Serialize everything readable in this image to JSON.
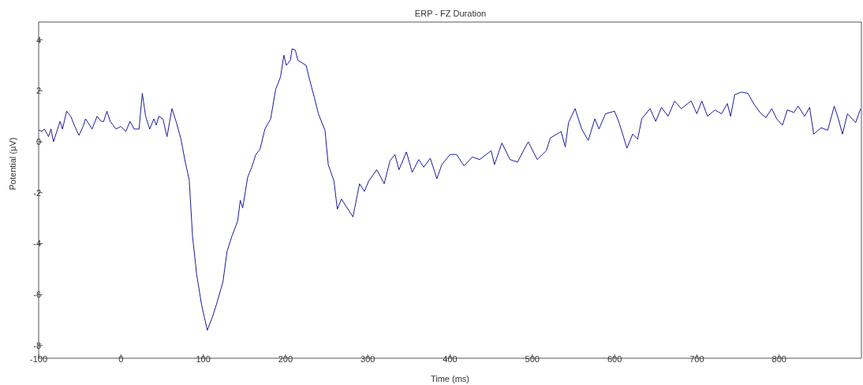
{
  "chart_data": {
    "type": "line",
    "title": "ERP - FZ Duration",
    "xlabel": "Time (ms)",
    "ylabel": "Potential (μV)",
    "color": "#1a1a9c",
    "marker": "none",
    "line_style": "solid",
    "xlim": [
      -100,
      900
    ],
    "ylim": [
      -8.5,
      4.7
    ],
    "xticks": [
      -100,
      0,
      100,
      200,
      300,
      400,
      500,
      600,
      700,
      800
    ],
    "yticks": [
      -8,
      -6,
      -4,
      -2,
      0,
      2,
      4
    ],
    "x": [
      -100,
      -96,
      -93,
      -88,
      -85,
      -82,
      -79,
      -74,
      -71,
      -66,
      -61,
      -56,
      -51,
      -46,
      -43,
      -38,
      -35,
      -29,
      -24,
      -21,
      -17,
      -13,
      -6,
      0,
      6,
      11,
      16,
      22,
      26,
      30,
      35,
      40,
      43,
      46,
      51,
      56,
      62,
      67,
      73,
      78,
      83,
      87,
      92,
      98,
      105,
      111,
      116,
      124,
      129,
      135,
      142,
      145,
      148,
      154,
      159,
      164,
      169,
      175,
      182,
      188,
      194,
      198,
      201,
      206,
      208,
      212,
      215,
      225,
      230,
      235,
      240,
      248,
      252,
      259,
      263,
      268,
      274,
      282,
      290,
      296,
      301,
      311,
      320,
      327,
      333,
      338,
      347,
      354,
      362,
      368,
      376,
      384,
      390,
      400,
      408,
      417,
      427,
      436,
      450,
      454,
      463,
      473,
      482,
      495,
      506,
      517,
      522,
      535,
      540,
      544,
      552,
      560,
      568,
      576,
      581,
      589,
      600,
      606,
      615,
      622,
      628,
      633,
      643,
      650,
      657,
      665,
      673,
      681,
      693,
      700,
      706,
      713,
      722,
      730,
      737,
      741,
      746,
      754,
      762,
      770,
      778,
      784,
      791,
      797,
      804,
      810,
      818,
      823,
      831,
      837,
      842,
      851,
      859,
      867,
      872,
      877,
      883,
      893,
      899
    ],
    "values": [
      0.46,
      0.41,
      0.5,
      0.2,
      0.5,
      0.0,
      0.3,
      0.8,
      0.5,
      1.2,
      1.0,
      0.6,
      0.25,
      0.6,
      0.9,
      0.65,
      0.5,
      1.0,
      0.8,
      0.8,
      1.2,
      0.8,
      0.5,
      0.6,
      0.4,
      0.8,
      0.5,
      0.5,
      1.9,
      1.0,
      0.5,
      0.9,
      0.65,
      1.0,
      0.9,
      0.2,
      1.3,
      0.8,
      0.1,
      -0.77,
      -1.5,
      -3.7,
      -5.2,
      -6.4,
      -7.4,
      -6.9,
      -6.4,
      -5.5,
      -4.3,
      -3.7,
      -3.1,
      -2.3,
      -2.6,
      -1.4,
      -1.0,
      -0.5,
      -0.3,
      0.5,
      0.9,
      2.05,
      2.55,
      3.4,
      3.0,
      3.2,
      3.65,
      3.6,
      3.2,
      3.0,
      2.35,
      1.75,
      1.1,
      0.45,
      -0.9,
      -1.55,
      -2.65,
      -2.25,
      -2.55,
      -2.95,
      -1.65,
      -1.95,
      -1.55,
      -1.1,
      -1.65,
      -0.75,
      -0.5,
      -1.1,
      -0.4,
      -1.2,
      -0.7,
      -1.0,
      -0.65,
      -1.45,
      -0.9,
      -0.5,
      -0.5,
      -0.95,
      -0.6,
      -0.7,
      -0.35,
      -0.9,
      -0.05,
      -0.7,
      -0.8,
      0.0,
      -0.7,
      -0.35,
      0.15,
      0.4,
      -0.2,
      0.75,
      1.3,
      0.5,
      0.05,
      0.9,
      0.5,
      1.1,
      1.2,
      0.7,
      -0.25,
      0.3,
      0.1,
      0.9,
      1.3,
      0.8,
      1.35,
      1.0,
      1.6,
      1.3,
      1.6,
      1.1,
      1.6,
      1.0,
      1.25,
      1.1,
      1.5,
      1.0,
      1.85,
      1.95,
      1.9,
      1.45,
      1.1,
      0.95,
      1.3,
      0.9,
      0.65,
      1.25,
      1.15,
      1.4,
      1.0,
      1.35,
      0.3,
      0.55,
      0.45,
      1.4,
      0.9,
      0.3,
      1.1,
      0.75,
      1.3
    ]
  }
}
